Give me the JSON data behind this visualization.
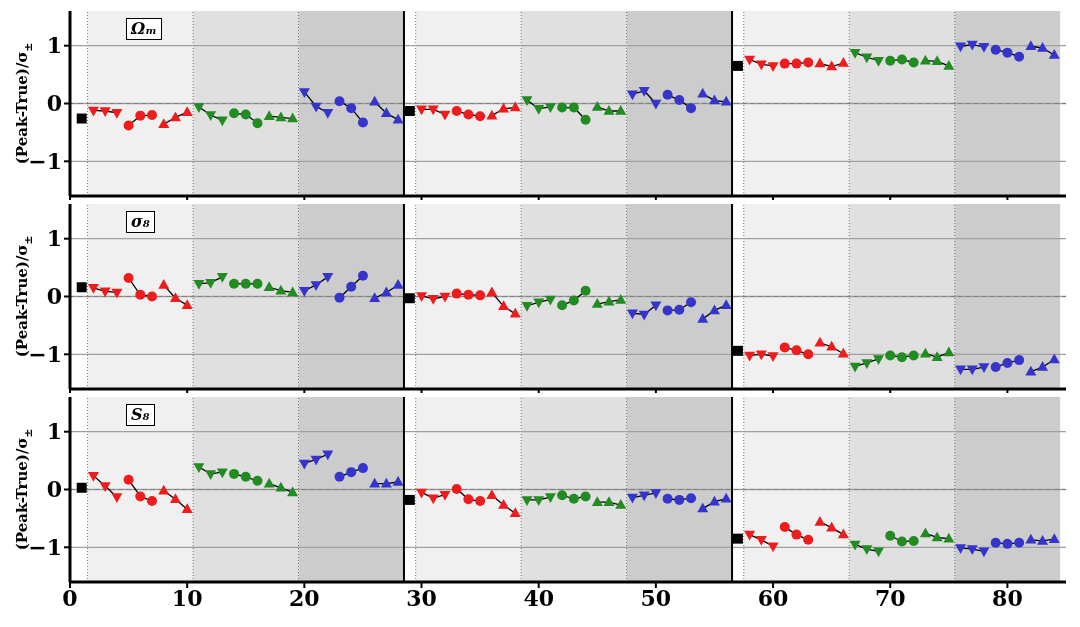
{
  "chart_data": [
    {
      "type": "line",
      "title": "Ωₘ",
      "ylabel": "(Peak-True)/σ$_{±}$",
      "xlim": [
        0,
        85
      ],
      "xticks": [
        0,
        10,
        20,
        30,
        40,
        50,
        60,
        70,
        80
      ],
      "ylim": [
        -1.6,
        1.6
      ],
      "yticks": [
        -1,
        0,
        1
      ],
      "grid": "y",
      "tick_labels": "y",
      "bands": [
        {
          "axis": "x",
          "from": 1.5,
          "to": 10.5,
          "color": "#f0f0f0"
        },
        {
          "axis": "x",
          "from": 10.5,
          "to": 19.5,
          "color": "#e0e0e0"
        },
        {
          "axis": "x",
          "from": 19.5,
          "to": 28.5,
          "color": "#cccccc"
        },
        {
          "axis": "x",
          "from": 29.5,
          "to": 38.5,
          "color": "#f0f0f0"
        },
        {
          "axis": "x",
          "from": 38.5,
          "to": 47.5,
          "color": "#e0e0e0"
        },
        {
          "axis": "x",
          "from": 47.5,
          "to": 56.5,
          "color": "#cccccc"
        },
        {
          "axis": "x",
          "from": 57.5,
          "to": 66.5,
          "color": "#f0f0f0"
        },
        {
          "axis": "x",
          "from": 66.5,
          "to": 75.5,
          "color": "#e0e0e0"
        },
        {
          "axis": "x",
          "from": 75.5,
          "to": 84.5,
          "color": "#cccccc"
        }
      ],
      "ref_lines": [
        {
          "axis": "y",
          "value": 0,
          "color": "#808080",
          "line_style": "dashed"
        },
        {
          "axis": "x",
          "value": 28.5,
          "color": "#000000",
          "line_style": "solid"
        },
        {
          "axis": "x",
          "value": 56.5,
          "color": "#000000",
          "line_style": "solid"
        }
      ],
      "series": [
        {
          "type": "scatter",
          "color": "#000000",
          "marker": "square",
          "x": [
            1,
            29,
            57
          ],
          "values": [
            -0.26,
            -0.13,
            0.65
          ]
        },
        {
          "color": "#ee1c1c",
          "marker": "triangle-down",
          "x": [
            2,
            3,
            4
          ],
          "values": [
            -0.12,
            -0.13,
            -0.16
          ]
        },
        {
          "color": "#ee1c1c",
          "marker": "circle",
          "x": [
            5,
            6,
            7
          ],
          "values": [
            -0.38,
            -0.21,
            -0.2
          ]
        },
        {
          "color": "#ee1c1c",
          "marker": "triangle",
          "x": [
            8,
            9,
            10
          ],
          "values": [
            -0.36,
            -0.24,
            -0.15
          ]
        },
        {
          "color": "#228b22",
          "marker": "triangle-down",
          "x": [
            11,
            12,
            13
          ],
          "values": [
            -0.06,
            -0.2,
            -0.29
          ]
        },
        {
          "color": "#228b22",
          "marker": "circle",
          "x": [
            14,
            15,
            16
          ],
          "values": [
            -0.17,
            -0.19,
            -0.34
          ]
        },
        {
          "color": "#228b22",
          "marker": "triangle",
          "x": [
            17,
            18,
            19
          ],
          "values": [
            -0.22,
            -0.24,
            -0.26
          ]
        },
        {
          "color": "#3535cc",
          "marker": "triangle-down",
          "x": [
            20,
            21,
            22
          ],
          "values": [
            0.2,
            -0.05,
            -0.16
          ]
        },
        {
          "color": "#3535cc",
          "marker": "circle",
          "x": [
            23,
            24,
            25
          ],
          "values": [
            0.04,
            -0.08,
            -0.33
          ]
        },
        {
          "color": "#3535cc",
          "marker": "triangle",
          "x": [
            26,
            27,
            28
          ],
          "values": [
            0.03,
            -0.17,
            -0.28
          ]
        },
        {
          "color": "#ee1c1c",
          "marker": "triangle-down",
          "x": [
            30,
            31,
            32
          ],
          "values": [
            -0.1,
            -0.1,
            -0.19
          ]
        },
        {
          "color": "#ee1c1c",
          "marker": "circle",
          "x": [
            33,
            34,
            35
          ],
          "values": [
            -0.13,
            -0.19,
            -0.22
          ]
        },
        {
          "color": "#ee1c1c",
          "marker": "triangle",
          "x": [
            36,
            37,
            38
          ],
          "values": [
            -0.21,
            -0.09,
            -0.07
          ]
        },
        {
          "color": "#228b22",
          "marker": "triangle-down",
          "x": [
            39,
            40,
            41
          ],
          "values": [
            0.06,
            -0.09,
            -0.06
          ]
        },
        {
          "color": "#228b22",
          "marker": "circle",
          "x": [
            42,
            43,
            44
          ],
          "values": [
            -0.07,
            -0.07,
            -0.28
          ]
        },
        {
          "color": "#228b22",
          "marker": "triangle",
          "x": [
            45,
            46,
            47
          ],
          "values": [
            -0.06,
            -0.13,
            -0.13
          ]
        },
        {
          "color": "#3535cc",
          "marker": "triangle-down",
          "x": [
            48,
            49,
            50
          ],
          "values": [
            0.16,
            0.22,
            0.0
          ]
        },
        {
          "color": "#3535cc",
          "marker": "circle",
          "x": [
            51,
            52,
            53
          ],
          "values": [
            0.15,
            0.06,
            -0.08
          ]
        },
        {
          "color": "#3535cc",
          "marker": "triangle",
          "x": [
            54,
            55,
            56
          ],
          "values": [
            0.17,
            0.05,
            0.03
          ]
        },
        {
          "color": "#ee1c1c",
          "marker": "triangle-down",
          "x": [
            58,
            59,
            60
          ],
          "values": [
            0.76,
            0.68,
            0.65
          ]
        },
        {
          "color": "#ee1c1c",
          "marker": "circle",
          "x": [
            61,
            62,
            63
          ],
          "values": [
            0.69,
            0.69,
            0.71
          ]
        },
        {
          "color": "#ee1c1c",
          "marker": "triangle",
          "x": [
            64,
            65,
            66
          ],
          "values": [
            0.69,
            0.64,
            0.7
          ]
        },
        {
          "color": "#228b22",
          "marker": "triangle-down",
          "x": [
            67,
            68,
            69
          ],
          "values": [
            0.88,
            0.8,
            0.74
          ]
        },
        {
          "color": "#228b22",
          "marker": "circle",
          "x": [
            70,
            71,
            72
          ],
          "values": [
            0.74,
            0.76,
            0.71
          ]
        },
        {
          "color": "#228b22",
          "marker": "triangle",
          "x": [
            73,
            74,
            75
          ],
          "values": [
            0.74,
            0.73,
            0.65
          ]
        },
        {
          "color": "#3535cc",
          "marker": "triangle-down",
          "x": [
            76,
            77,
            78
          ],
          "values": [
            0.99,
            1.02,
            0.98
          ]
        },
        {
          "color": "#3535cc",
          "marker": "circle",
          "x": [
            79,
            80,
            81
          ],
          "values": [
            0.93,
            0.88,
            0.81
          ]
        },
        {
          "color": "#3535cc",
          "marker": "triangle",
          "x": [
            82,
            83,
            84
          ],
          "values": [
            0.99,
            0.96,
            0.84
          ]
        }
      ]
    },
    {
      "type": "line",
      "title": "σ₈",
      "ylabel": "(Peak-True)/σ$_{±}$",
      "xlim": [
        0,
        85
      ],
      "xticks": [
        0,
        10,
        20,
        30,
        40,
        50,
        60,
        70,
        80
      ],
      "ylim": [
        -1.6,
        1.6
      ],
      "yticks": [
        -1,
        0,
        1
      ],
      "grid": "y",
      "tick_labels": "y",
      "bands": [
        {
          "axis": "x",
          "from": 1.5,
          "to": 10.5,
          "color": "#f0f0f0"
        },
        {
          "axis": "x",
          "from": 10.5,
          "to": 19.5,
          "color": "#e0e0e0"
        },
        {
          "axis": "x",
          "from": 19.5,
          "to": 28.5,
          "color": "#cccccc"
        },
        {
          "axis": "x",
          "from": 29.5,
          "to": 38.5,
          "color": "#f0f0f0"
        },
        {
          "axis": "x",
          "from": 38.5,
          "to": 47.5,
          "color": "#e0e0e0"
        },
        {
          "axis": "x",
          "from": 47.5,
          "to": 56.5,
          "color": "#cccccc"
        },
        {
          "axis": "x",
          "from": 57.5,
          "to": 66.5,
          "color": "#f0f0f0"
        },
        {
          "axis": "x",
          "from": 66.5,
          "to": 75.5,
          "color": "#e0e0e0"
        },
        {
          "axis": "x",
          "from": 75.5,
          "to": 84.5,
          "color": "#cccccc"
        }
      ],
      "ref_lines": [
        {
          "axis": "y",
          "value": 0,
          "color": "#808080",
          "line_style": "dashed"
        },
        {
          "axis": "x",
          "value": 28.5,
          "color": "#000000",
          "line_style": "solid"
        },
        {
          "axis": "x",
          "value": 56.5,
          "color": "#000000",
          "line_style": "solid"
        }
      ],
      "series": [
        {
          "type": "scatter",
          "color": "#000000",
          "marker": "square",
          "x": [
            1,
            29,
            57
          ],
          "values": [
            0.16,
            -0.03,
            -0.94
          ]
        },
        {
          "color": "#ee1c1c",
          "marker": "triangle-down",
          "x": [
            2,
            3,
            4
          ],
          "values": [
            0.15,
            0.09,
            0.07
          ]
        },
        {
          "color": "#ee1c1c",
          "marker": "circle",
          "x": [
            5,
            6,
            7
          ],
          "values": [
            0.32,
            0.03,
            0.0
          ]
        },
        {
          "color": "#ee1c1c",
          "marker": "triangle",
          "x": [
            8,
            9,
            10
          ],
          "values": [
            0.2,
            -0.03,
            -0.15
          ]
        },
        {
          "color": "#228b22",
          "marker": "triangle-down",
          "x": [
            11,
            12,
            13
          ],
          "values": [
            0.22,
            0.24,
            0.34
          ]
        },
        {
          "color": "#228b22",
          "marker": "circle",
          "x": [
            14,
            15,
            16
          ],
          "values": [
            0.22,
            0.22,
            0.22
          ]
        },
        {
          "color": "#228b22",
          "marker": "triangle",
          "x": [
            17,
            18,
            19
          ],
          "values": [
            0.16,
            0.1,
            0.07
          ]
        },
        {
          "color": "#3535cc",
          "marker": "triangle-down",
          "x": [
            20,
            21,
            22
          ],
          "values": [
            0.1,
            0.2,
            0.34
          ]
        },
        {
          "color": "#3535cc",
          "marker": "circle",
          "x": [
            23,
            24,
            25
          ],
          "values": [
            -0.02,
            0.17,
            0.36
          ]
        },
        {
          "color": "#3535cc",
          "marker": "triangle",
          "x": [
            26,
            27,
            28
          ],
          "values": [
            -0.03,
            0.07,
            0.2
          ]
        },
        {
          "color": "#ee1c1c",
          "marker": "triangle-down",
          "x": [
            30,
            31,
            32
          ],
          "values": [
            0.01,
            -0.04,
            0.0
          ]
        },
        {
          "color": "#ee1c1c",
          "marker": "circle",
          "x": [
            33,
            34,
            35
          ],
          "values": [
            0.05,
            0.03,
            0.02
          ]
        },
        {
          "color": "#ee1c1c",
          "marker": "triangle",
          "x": [
            36,
            37,
            38
          ],
          "values": [
            0.07,
            -0.17,
            -0.3
          ]
        },
        {
          "color": "#228b22",
          "marker": "triangle-down",
          "x": [
            39,
            40,
            41
          ],
          "values": [
            -0.16,
            -0.1,
            -0.05
          ]
        },
        {
          "color": "#228b22",
          "marker": "circle",
          "x": [
            42,
            43,
            44
          ],
          "values": [
            -0.15,
            -0.07,
            0.1
          ]
        },
        {
          "color": "#228b22",
          "marker": "triangle",
          "x": [
            45,
            46,
            47
          ],
          "values": [
            -0.13,
            -0.09,
            -0.06
          ]
        },
        {
          "color": "#3535cc",
          "marker": "triangle-down",
          "x": [
            48,
            49,
            50
          ],
          "values": [
            -0.29,
            -0.31,
            -0.15
          ]
        },
        {
          "color": "#3535cc",
          "marker": "circle",
          "x": [
            51,
            52,
            53
          ],
          "values": [
            -0.24,
            -0.23,
            -0.1
          ]
        },
        {
          "color": "#3535cc",
          "marker": "triangle",
          "x": [
            54,
            55,
            56
          ],
          "values": [
            -0.39,
            -0.24,
            -0.15
          ]
        },
        {
          "color": "#ee1c1c",
          "marker": "triangle-down",
          "x": [
            58,
            59,
            60
          ],
          "values": [
            -1.02,
            -1.0,
            -1.03
          ]
        },
        {
          "color": "#ee1c1c",
          "marker": "circle",
          "x": [
            61,
            62,
            63
          ],
          "values": [
            -0.88,
            -0.93,
            -1.0
          ]
        },
        {
          "color": "#ee1c1c",
          "marker": "triangle",
          "x": [
            64,
            65,
            66
          ],
          "values": [
            -0.8,
            -0.87,
            -0.99
          ]
        },
        {
          "color": "#228b22",
          "marker": "triangle-down",
          "x": [
            67,
            68,
            69
          ],
          "values": [
            -1.21,
            -1.15,
            -1.08
          ]
        },
        {
          "color": "#228b22",
          "marker": "circle",
          "x": [
            70,
            71,
            72
          ],
          "values": [
            -1.02,
            -1.05,
            -1.02
          ]
        },
        {
          "color": "#228b22",
          "marker": "triangle",
          "x": [
            73,
            74,
            75
          ],
          "values": [
            -0.99,
            -1.05,
            -0.97
          ]
        },
        {
          "color": "#3535cc",
          "marker": "triangle-down",
          "x": [
            76,
            77,
            78
          ],
          "values": [
            -1.26,
            -1.26,
            -1.22
          ]
        },
        {
          "color": "#3535cc",
          "marker": "circle",
          "x": [
            79,
            80,
            81
          ],
          "values": [
            -1.22,
            -1.15,
            -1.1
          ]
        },
        {
          "color": "#3535cc",
          "marker": "triangle",
          "x": [
            82,
            83,
            84
          ],
          "values": [
            -1.3,
            -1.22,
            -1.09
          ]
        }
      ]
    },
    {
      "type": "line",
      "title": "S₈",
      "ylabel": "(Peak-True)/σ$_{±}$",
      "xlim": [
        0,
        85
      ],
      "xticks": [
        0,
        10,
        20,
        30,
        40,
        50,
        60,
        70,
        80
      ],
      "ylim": [
        -1.6,
        1.6
      ],
      "yticks": [
        -1,
        0,
        1
      ],
      "grid": "y",
      "bands": [
        {
          "axis": "x",
          "from": 1.5,
          "to": 10.5,
          "color": "#f0f0f0"
        },
        {
          "axis": "x",
          "from": 10.5,
          "to": 19.5,
          "color": "#e0e0e0"
        },
        {
          "axis": "x",
          "from": 19.5,
          "to": 28.5,
          "color": "#cccccc"
        },
        {
          "axis": "x",
          "from": 29.5,
          "to": 38.5,
          "color": "#f0f0f0"
        },
        {
          "axis": "x",
          "from": 38.5,
          "to": 47.5,
          "color": "#e0e0e0"
        },
        {
          "axis": "x",
          "from": 47.5,
          "to": 56.5,
          "color": "#cccccc"
        },
        {
          "axis": "x",
          "from": 57.5,
          "to": 66.5,
          "color": "#f0f0f0"
        },
        {
          "axis": "x",
          "from": 66.5,
          "to": 75.5,
          "color": "#e0e0e0"
        },
        {
          "axis": "x",
          "from": 75.5,
          "to": 84.5,
          "color": "#cccccc"
        }
      ],
      "ref_lines": [
        {
          "axis": "y",
          "value": 0,
          "color": "#808080",
          "line_style": "dashed"
        },
        {
          "axis": "x",
          "value": 28.5,
          "color": "#000000",
          "line_style": "solid"
        },
        {
          "axis": "x",
          "value": 56.5,
          "color": "#000000",
          "line_style": "solid"
        }
      ],
      "series": [
        {
          "type": "scatter",
          "color": "#000000",
          "marker": "square",
          "x": [
            1,
            29,
            57
          ],
          "values": [
            0.03,
            -0.18,
            -0.85
          ]
        },
        {
          "color": "#ee1c1c",
          "marker": "triangle-down",
          "x": [
            2,
            3,
            4
          ],
          "values": [
            0.24,
            0.06,
            -0.13
          ]
        },
        {
          "color": "#ee1c1c",
          "marker": "circle",
          "x": [
            5,
            6,
            7
          ],
          "values": [
            0.17,
            -0.12,
            -0.2
          ]
        },
        {
          "color": "#ee1c1c",
          "marker": "triangle",
          "x": [
            8,
            9,
            10
          ],
          "values": [
            -0.02,
            -0.17,
            -0.34
          ]
        },
        {
          "color": "#228b22",
          "marker": "triangle-down",
          "x": [
            11,
            12,
            13
          ],
          "values": [
            0.39,
            0.27,
            0.3
          ]
        },
        {
          "color": "#228b22",
          "marker": "circle",
          "x": [
            14,
            15,
            16
          ],
          "values": [
            0.27,
            0.22,
            0.15
          ]
        },
        {
          "color": "#228b22",
          "marker": "triangle",
          "x": [
            17,
            18,
            19
          ],
          "values": [
            0.1,
            0.03,
            -0.05
          ]
        },
        {
          "color": "#3535cc",
          "marker": "triangle-down",
          "x": [
            20,
            21,
            22
          ],
          "values": [
            0.45,
            0.52,
            0.61
          ]
        },
        {
          "color": "#3535cc",
          "marker": "circle",
          "x": [
            23,
            24,
            25
          ],
          "values": [
            0.22,
            0.3,
            0.37
          ]
        },
        {
          "color": "#3535cc",
          "marker": "triangle",
          "x": [
            26,
            27,
            28
          ],
          "values": [
            0.1,
            0.1,
            0.13
          ]
        },
        {
          "color": "#ee1c1c",
          "marker": "triangle-down",
          "x": [
            30,
            31,
            32
          ],
          "values": [
            -0.05,
            -0.15,
            -0.09
          ]
        },
        {
          "color": "#ee1c1c",
          "marker": "circle",
          "x": [
            33,
            34,
            35
          ],
          "values": [
            0.01,
            -0.17,
            -0.2
          ]
        },
        {
          "color": "#ee1c1c",
          "marker": "triangle",
          "x": [
            36,
            37,
            38
          ],
          "values": [
            -0.1,
            -0.27,
            -0.41
          ]
        },
        {
          "color": "#228b22",
          "marker": "triangle-down",
          "x": [
            39,
            40,
            41
          ],
          "values": [
            -0.18,
            -0.18,
            -0.13
          ]
        },
        {
          "color": "#228b22",
          "marker": "circle",
          "x": [
            42,
            43,
            44
          ],
          "values": [
            -0.1,
            -0.16,
            -0.12
          ]
        },
        {
          "color": "#228b22",
          "marker": "triangle",
          "x": [
            45,
            46,
            47
          ],
          "values": [
            -0.22,
            -0.22,
            -0.27
          ]
        },
        {
          "color": "#3535cc",
          "marker": "triangle-down",
          "x": [
            48,
            49,
            50
          ],
          "values": [
            -0.14,
            -0.1,
            -0.06
          ]
        },
        {
          "color": "#3535cc",
          "marker": "circle",
          "x": [
            51,
            52,
            53
          ],
          "values": [
            -0.16,
            -0.18,
            -0.15
          ]
        },
        {
          "color": "#3535cc",
          "marker": "triangle",
          "x": [
            54,
            55,
            56
          ],
          "values": [
            -0.33,
            -0.21,
            -0.16
          ]
        },
        {
          "color": "#ee1c1c",
          "marker": "triangle-down",
          "x": [
            58,
            59,
            60
          ],
          "values": [
            -0.78,
            -0.87,
            -0.98
          ]
        },
        {
          "color": "#ee1c1c",
          "marker": "circle",
          "x": [
            61,
            62,
            63
          ],
          "values": [
            -0.65,
            -0.78,
            -0.87
          ]
        },
        {
          "color": "#ee1c1c",
          "marker": "triangle",
          "x": [
            64,
            65,
            66
          ],
          "values": [
            -0.56,
            -0.66,
            -0.78
          ]
        },
        {
          "color": "#228b22",
          "marker": "triangle-down",
          "x": [
            67,
            68,
            69
          ],
          "values": [
            -0.95,
            -1.03,
            -1.07
          ]
        },
        {
          "color": "#228b22",
          "marker": "circle",
          "x": [
            70,
            71,
            72
          ],
          "values": [
            -0.8,
            -0.9,
            -0.89
          ]
        },
        {
          "color": "#228b22",
          "marker": "triangle",
          "x": [
            73,
            74,
            75
          ],
          "values": [
            -0.76,
            -0.83,
            -0.85
          ]
        },
        {
          "color": "#3535cc",
          "marker": "triangle-down",
          "x": [
            76,
            77,
            78
          ],
          "values": [
            -1.01,
            -1.03,
            -1.07
          ]
        },
        {
          "color": "#3535cc",
          "marker": "circle",
          "x": [
            79,
            80,
            81
          ],
          "values": [
            -0.92,
            -0.94,
            -0.92
          ]
        },
        {
          "color": "#3535cc",
          "marker": "triangle",
          "x": [
            82,
            83,
            84
          ],
          "values": [
            -0.87,
            -0.89,
            -0.86
          ]
        }
      ]
    }
  ]
}
